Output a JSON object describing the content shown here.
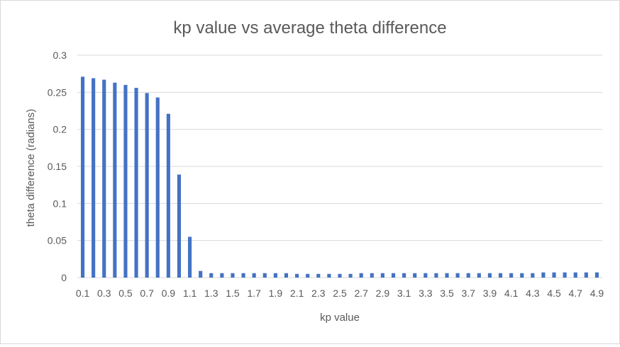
{
  "chart_data": {
    "type": "bar",
    "title": "kp value vs average theta difference",
    "xlabel": "kp value",
    "ylabel": "theta difference (radians)",
    "ylim": [
      0,
      0.3
    ],
    "yticks": [
      "0",
      "0.05",
      "0.1",
      "0.15",
      "0.2",
      "0.25",
      "0.3"
    ],
    "grid": true,
    "legend": "none",
    "bar_color": "#4472c4",
    "categories": [
      "0.1",
      "0.2",
      "0.3",
      "0.4",
      "0.5",
      "0.6",
      "0.7",
      "0.8",
      "0.9",
      "1",
      "1.1",
      "1.2",
      "1.3",
      "1.4",
      "1.5",
      "1.6",
      "1.7",
      "1.8",
      "1.9",
      "2",
      "2.1",
      "2.2",
      "2.3",
      "2.4",
      "2.5",
      "2.6",
      "2.7",
      "2.8",
      "2.9",
      "3",
      "3.1",
      "3.2",
      "3.3",
      "3.4",
      "3.5",
      "3.6",
      "3.7",
      "3.8",
      "3.9",
      "4",
      "4.1",
      "4.2",
      "4.3",
      "4.4",
      "4.5",
      "4.6",
      "4.7",
      "4.8",
      "4.9"
    ],
    "shown_tick_labels": [
      "0.1",
      "0.3",
      "0.5",
      "0.7",
      "0.9",
      "1.1",
      "1.3",
      "1.5",
      "1.7",
      "1.9",
      "2.1",
      "2.3",
      "2.5",
      "2.7",
      "2.9",
      "3.1",
      "3.3",
      "3.5",
      "3.7",
      "3.9",
      "4.1",
      "4.3",
      "4.5",
      "4.7",
      "4.9"
    ],
    "values": [
      0.271,
      0.269,
      0.267,
      0.263,
      0.26,
      0.256,
      0.249,
      0.243,
      0.221,
      0.139,
      0.055,
      0.009,
      0.006,
      0.006,
      0.006,
      0.006,
      0.006,
      0.006,
      0.006,
      0.006,
      0.005,
      0.005,
      0.005,
      0.005,
      0.005,
      0.005,
      0.006,
      0.006,
      0.006,
      0.006,
      0.006,
      0.006,
      0.006,
      0.006,
      0.006,
      0.006,
      0.006,
      0.006,
      0.006,
      0.006,
      0.006,
      0.006,
      0.006,
      0.007,
      0.007,
      0.007,
      0.007,
      0.007,
      0.007
    ]
  }
}
